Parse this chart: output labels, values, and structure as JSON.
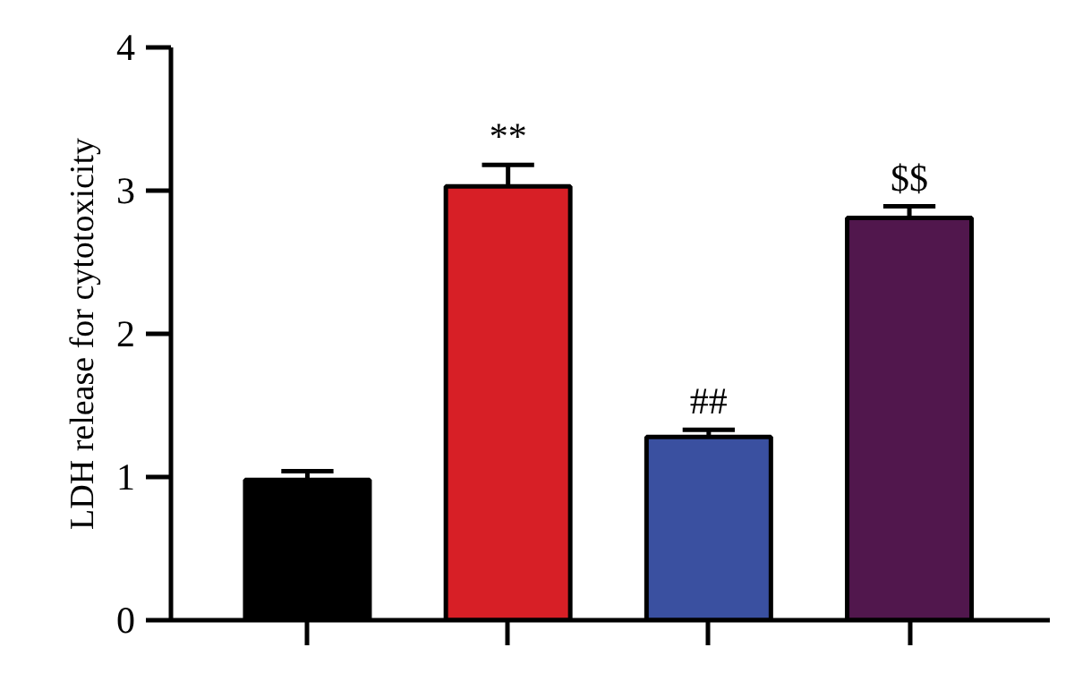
{
  "chart_data": {
    "type": "bar",
    "ylabel": "LDH release for cytotoxicity",
    "categories": [
      null,
      null,
      null,
      null
    ],
    "values": [
      0.98,
      3.03,
      1.28,
      2.81
    ],
    "colors": [
      "#000000",
      "#d71f26",
      "#3a50a0",
      "#51174d"
    ],
    "errors": [
      0.06,
      0.15,
      0.05,
      0.08
    ],
    "value_labels": [
      null,
      "**",
      "##",
      "$$"
    ],
    "ylim": [
      0,
      4
    ],
    "yticks": [
      0,
      1,
      2,
      3,
      4
    ],
    "grid": false,
    "tick_labels": "y"
  }
}
